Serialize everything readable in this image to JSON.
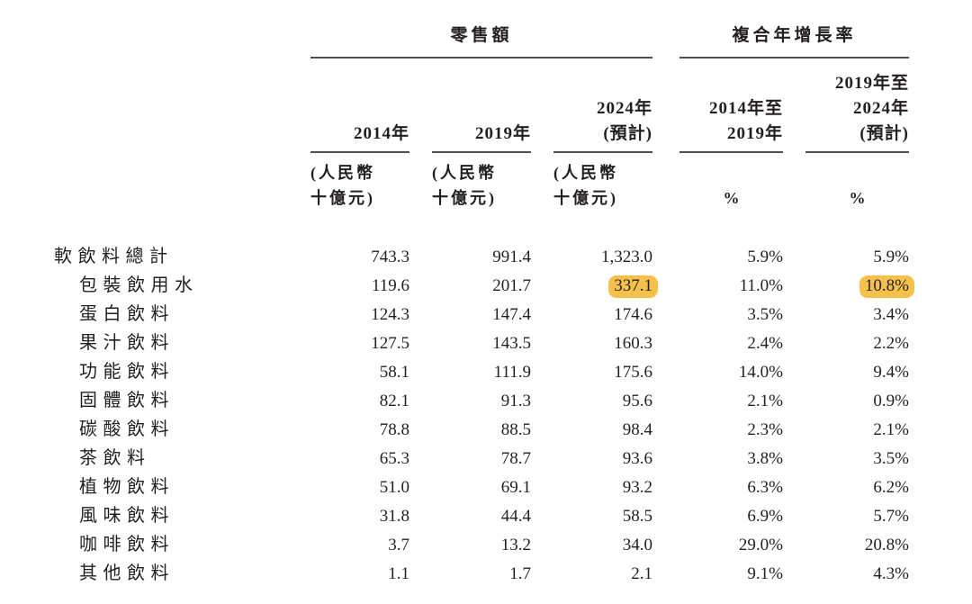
{
  "table": {
    "group_headers": {
      "retail": "零售額",
      "cagr": "複合年增長率"
    },
    "columns": [
      {
        "id": "y2014",
        "year_lines": [
          "2014年"
        ],
        "unit_lines": [
          "(人民幣",
          "十億元)"
        ]
      },
      {
        "id": "y2019",
        "year_lines": [
          "2019年"
        ],
        "unit_lines": [
          "(人民幣",
          "十億元)"
        ]
      },
      {
        "id": "y2024e",
        "year_lines": [
          "2024年",
          "(預計)"
        ],
        "unit_lines": [
          "(人民幣",
          "十億元)"
        ]
      },
      {
        "id": "cagr1419",
        "year_lines": [
          "2014年至",
          "2019年"
        ],
        "unit_lines": [
          "%"
        ]
      },
      {
        "id": "cagr1924e",
        "year_lines": [
          "2019年至",
          "2024年",
          "(預計)"
        ],
        "unit_lines": [
          "%"
        ]
      }
    ],
    "rows": [
      {
        "label": "軟飲料總計",
        "indent": false,
        "values": [
          "743.3",
          "991.4",
          "1,323.0",
          "5.9%",
          "5.9%"
        ],
        "highlights": []
      },
      {
        "label": "包裝飲用水",
        "indent": true,
        "values": [
          "119.6",
          "201.7",
          "337.1",
          "11.0%",
          "10.8%"
        ],
        "highlights": [
          2,
          4
        ]
      },
      {
        "label": "蛋白飲料",
        "indent": true,
        "values": [
          "124.3",
          "147.4",
          "174.6",
          "3.5%",
          "3.4%"
        ],
        "highlights": []
      },
      {
        "label": "果汁飲料",
        "indent": true,
        "values": [
          "127.5",
          "143.5",
          "160.3",
          "2.4%",
          "2.2%"
        ],
        "highlights": []
      },
      {
        "label": "功能飲料",
        "indent": true,
        "values": [
          "58.1",
          "111.9",
          "175.6",
          "14.0%",
          "9.4%"
        ],
        "highlights": []
      },
      {
        "label": "固體飲料",
        "indent": true,
        "values": [
          "82.1",
          "91.3",
          "95.6",
          "2.1%",
          "0.9%"
        ],
        "highlights": []
      },
      {
        "label": "碳酸飲料",
        "indent": true,
        "values": [
          "78.8",
          "88.5",
          "98.4",
          "2.3%",
          "2.1%"
        ],
        "highlights": []
      },
      {
        "label": "茶飲料",
        "indent": true,
        "values": [
          "65.3",
          "78.7",
          "93.6",
          "3.8%",
          "3.5%"
        ],
        "highlights": []
      },
      {
        "label": "植物飲料",
        "indent": true,
        "values": [
          "51.0",
          "69.1",
          "93.2",
          "6.3%",
          "6.2%"
        ],
        "highlights": []
      },
      {
        "label": "風味飲料",
        "indent": true,
        "values": [
          "31.8",
          "44.4",
          "58.5",
          "6.9%",
          "5.7%"
        ],
        "highlights": []
      },
      {
        "label": "咖啡飲料",
        "indent": true,
        "values": [
          "3.7",
          "13.2",
          "34.0",
          "29.0%",
          "20.8%"
        ],
        "highlights": []
      },
      {
        "label": "其他飲料",
        "indent": true,
        "values": [
          "1.1",
          "1.7",
          "2.1",
          "9.1%",
          "4.3%"
        ],
        "highlights": []
      }
    ],
    "highlight_color": "#f5c14b",
    "rule_color": "#4d4d4f",
    "text_color": "#231f20"
  }
}
